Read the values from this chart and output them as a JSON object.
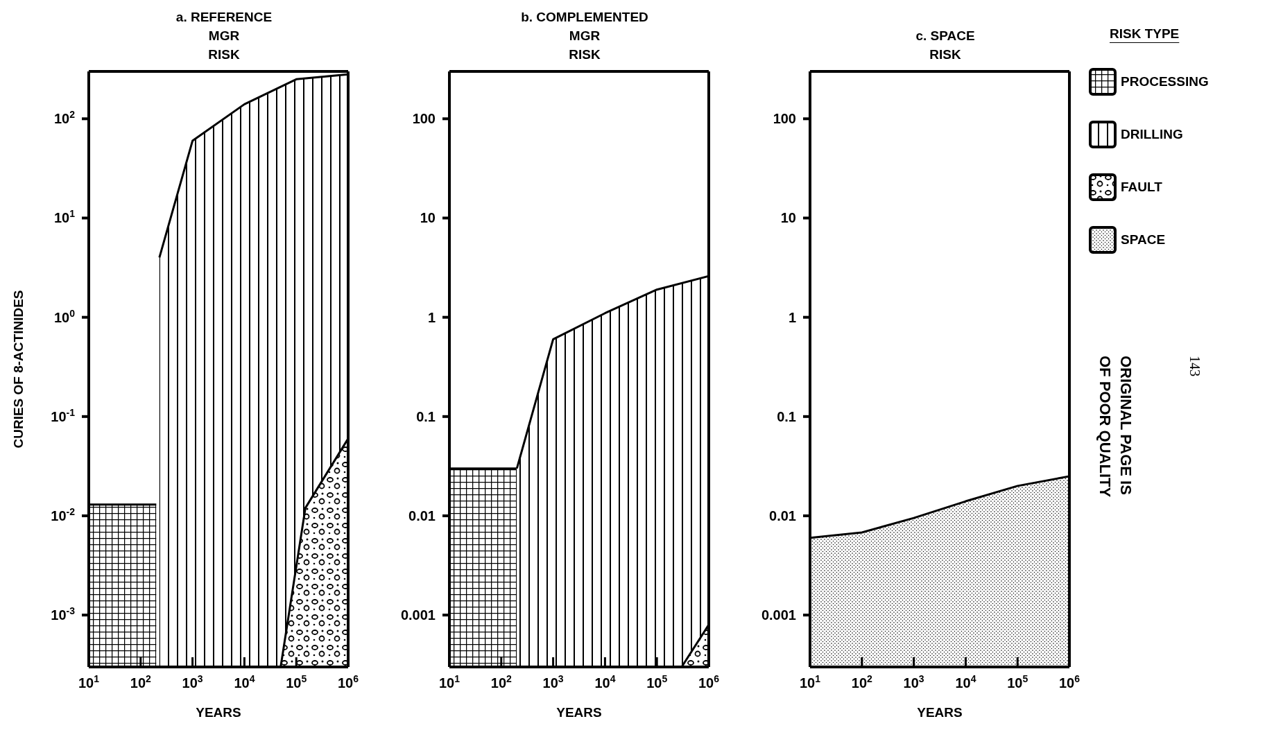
{
  "chart_data": [
    {
      "type": "area",
      "title": "a. REFERENCE\nMGR\nRISK",
      "xlabel": "YEARS",
      "ylabel": "CURIES OF 8-ACTINIDES",
      "log": "xy",
      "legend": "right",
      "grid": false,
      "xlim": [
        10,
        1000000
      ],
      "xticks": [
        {
          "value": 10,
          "label": "10$^{1}$"
        },
        {
          "value": 100,
          "label": "10$^{2}$"
        },
        {
          "value": 1000,
          "label": "10$^{3}$"
        },
        {
          "value": 10000,
          "label": "10$^{4}$"
        },
        {
          "value": 100000,
          "label": "10$^{5}$"
        },
        {
          "value": 1000000,
          "label": "10$^{6}$"
        }
      ],
      "ylim": [
        0.0003,
        300
      ],
      "yticks": [
        {
          "value": 100,
          "label": "10$^{2}$"
        },
        {
          "value": 10,
          "label": "10$^{1}$"
        },
        {
          "value": 1,
          "label": "10$^{0}$"
        },
        {
          "value": 0.1,
          "label": "10$^{-1}$"
        },
        {
          "value": 0.01,
          "label": "10$^{-2}$"
        },
        {
          "value": 0.001,
          "label": "10$^{-3}$"
        }
      ],
      "series": [
        {
          "name": "PROCESSING",
          "color": "#000000",
          "x": [
            10,
            200
          ],
          "values": [
            0.013,
            0.013
          ]
        },
        {
          "name": "DRILLING",
          "color": "#000000",
          "x": [
            230,
            1000,
            10000,
            100000,
            1000000
          ],
          "values": [
            4,
            60,
            140,
            250,
            280
          ]
        },
        {
          "name": "FAULT",
          "color": "#000000",
          "x": [
            50000,
            150000,
            1000000
          ],
          "values": [
            0.0003,
            0.012,
            0.06
          ]
        }
      ]
    },
    {
      "type": "area",
      "title": "b. COMPLEMENTED\nMGR\nRISK",
      "xlabel": "YEARS",
      "log": "xy",
      "legend": false,
      "grid": false,
      "xlim": [
        10,
        1000000
      ],
      "xticks": [
        {
          "value": 10,
          "label": "10$^{1}$"
        },
        {
          "value": 100,
          "label": "10$^{2}$"
        },
        {
          "value": 1000,
          "label": "10$^{3}$"
        },
        {
          "value": 10000,
          "label": "10$^{4}$"
        },
        {
          "value": 100000,
          "label": "10$^{5}$"
        },
        {
          "value": 1000000,
          "label": "10$^{6}$"
        }
      ],
      "ylim": [
        0.0003,
        300
      ],
      "yticks": [
        100,
        10,
        1,
        0.1,
        0.01,
        0.001
      ],
      "series": [
        {
          "color": "#000000",
          "x": [
            10,
            200
          ],
          "values": [
            0.03,
            0.03
          ]
        },
        {
          "color": "#000000",
          "x": [
            200,
            1000,
            10000,
            100000,
            1000000
          ],
          "values": [
            0.03,
            0.6,
            1.1,
            1.9,
            2.6
          ]
        },
        {
          "color": "#000000",
          "x": [
            300000,
            1000000
          ],
          "values": [
            0.0003,
            0.0008
          ]
        }
      ]
    },
    {
      "type": "area",
      "title": "c. SPACE\nRISK",
      "xlabel": "YEARS",
      "log": "xy",
      "legend": "right",
      "legend_title": "RISK TYPE",
      "grid": false,
      "xlim": [
        10,
        1000000
      ],
      "xticks": [
        {
          "value": 10,
          "label": "10$^{1}$"
        },
        {
          "value": 100,
          "label": "10$^{2}$"
        },
        {
          "value": 1000,
          "label": "10$^{3}$"
        },
        {
          "value": 10000,
          "label": "10$^{4}$"
        },
        {
          "value": 100000,
          "label": "10$^{5}$"
        },
        {
          "value": 1000000,
          "label": "10$^{6}$"
        }
      ],
      "ylim": [
        0.0003,
        300
      ],
      "yticks": [
        100,
        10,
        1,
        0.1,
        0.01,
        0.001
      ],
      "annotations": [
        "ORIGINAL PAGE IS\nOF POOR QUALITY",
        "143"
      ],
      "series": [
        {
          "name": "SPACE",
          "color": "#000000",
          "x": [
            10,
            100,
            1000,
            10000,
            100000,
            1000000
          ],
          "values": [
            0.006,
            0.0068,
            0.0095,
            0.014,
            0.02,
            0.025
          ]
        }
      ]
    }
  ]
}
